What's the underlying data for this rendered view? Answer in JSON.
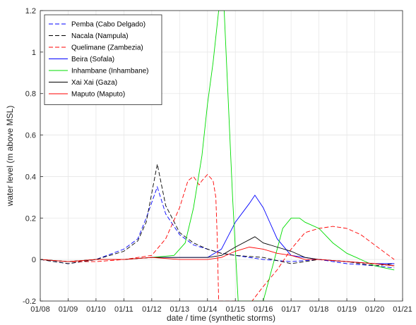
{
  "chart_data": {
    "type": "line",
    "xlabel": "date / time (synthetic storms)",
    "ylabel": "water level (m above MSL)",
    "x_ticks": [
      "01/08",
      "01/09",
      "01/10",
      "01/11",
      "01/12",
      "01/13",
      "01/14",
      "01/15",
      "01/16",
      "01/17",
      "01/18",
      "01/19",
      "01/20",
      "01/21"
    ],
    "y_ticks": [
      "-0.2",
      "0",
      "0.2",
      "0.4",
      "0.6",
      "0.8",
      "1",
      "1.2"
    ],
    "xlim": [
      "01/08",
      "01/21"
    ],
    "ylim": [
      -0.2,
      1.2
    ],
    "grid": true,
    "legend_position": "top-left",
    "series": [
      {
        "name": "Pemba (Cabo Delgado)",
        "color": "#0000ff",
        "dash": "dashed",
        "x": [
          "01/08 00:00",
          "01/09 00:00",
          "01/10 00:00",
          "01/11 00:00",
          "01/11 12:00",
          "01/11 19:12",
          "01/12 04:48",
          "01/12 12:00",
          "01/13 00:00",
          "01/13 12:00",
          "01/14 00:00",
          "01/14 12:00",
          "01/15 00:00",
          "01/16 00:00",
          "01/17 00:00",
          "01/18 00:00",
          "01/19 00:00",
          "01/20 00:00",
          "01/20 16:48"
        ],
        "y": [
          0.0,
          -0.02,
          0.0,
          0.05,
          0.1,
          0.2,
          0.35,
          0.22,
          0.12,
          0.07,
          0.05,
          0.03,
          0.02,
          0.0,
          -0.01,
          0.0,
          -0.02,
          -0.03,
          -0.04
        ]
      },
      {
        "name": "Nacala (Nampula)",
        "color": "#000000",
        "dash": "dashed",
        "x": [
          "01/08 00:00",
          "01/09 00:00",
          "01/10 00:00",
          "01/11 00:00",
          "01/11 12:00",
          "01/11 19:12",
          "01/12 04:48",
          "01/12 12:00",
          "01/13 00:00",
          "01/13 12:00",
          "01/14 00:00",
          "01/14 12:00",
          "01/15 00:00",
          "01/16 00:00",
          "01/17 00:00",
          "01/18 00:00",
          "01/19 00:00",
          "01/20 00:00",
          "01/20 16:48"
        ],
        "y": [
          0.0,
          -0.02,
          0.0,
          0.04,
          0.09,
          0.18,
          0.46,
          0.26,
          0.13,
          0.08,
          0.05,
          0.03,
          0.02,
          0.01,
          -0.02,
          0.0,
          -0.01,
          -0.03,
          -0.02
        ]
      },
      {
        "name": "Quelimane (Zambezia)",
        "color": "#ff0000",
        "dash": "dashed",
        "x": [
          "01/08 00:00",
          "01/09 00:00",
          "01/10 00:00",
          "01/11 00:00",
          "01/12 00:00",
          "01/12 12:00",
          "01/13 00:00",
          "01/13 07:12",
          "01/13 12:00",
          "01/13 16:48",
          "01/13 19:12",
          "01/14 00:00",
          "01/14 04:48",
          "01/14 07:12",
          "01/14 08:24",
          "01/14 09:36",
          "01/15 00:00",
          "01/15 07:12",
          "01/15 14:24",
          "01/16 00:00",
          "01/16 12:00",
          "01/17 00:00",
          "01/17 12:00",
          "01/18 00:00",
          "01/18 12:00",
          "01/19 00:00",
          "01/19 12:00",
          "01/20 00:00",
          "01/20 16:48"
        ],
        "y": [
          0.0,
          -0.01,
          -0.01,
          0.0,
          0.02,
          0.1,
          0.25,
          0.38,
          0.4,
          0.36,
          0.38,
          0.41,
          0.38,
          0.3,
          0.1,
          -0.2,
          -0.2,
          -0.2,
          -0.2,
          -0.13,
          -0.05,
          0.05,
          0.13,
          0.15,
          0.16,
          0.15,
          0.12,
          0.07,
          0.0
        ]
      },
      {
        "name": "Beira (Sofala)",
        "color": "#0000ff",
        "dash": "solid",
        "x": [
          "01/08 00:00",
          "01/09 00:00",
          "01/10 00:00",
          "01/11 00:00",
          "01/12 00:00",
          "01/13 00:00",
          "01/14 00:00",
          "01/14 12:00",
          "01/15 00:00",
          "01/15 12:00",
          "01/15 16:48",
          "01/16 00:00",
          "01/16 12:00",
          "01/17 00:00",
          "01/18 00:00",
          "01/19 00:00",
          "01/20 00:00",
          "01/20 16:48"
        ],
        "y": [
          0.0,
          -0.01,
          0.0,
          0.0,
          0.01,
          0.01,
          0.01,
          0.05,
          0.18,
          0.27,
          0.31,
          0.25,
          0.1,
          0.02,
          0.0,
          -0.01,
          -0.02,
          -0.02
        ]
      },
      {
        "name": "Inhambane (Inhambane)",
        "color": "#00dd00",
        "dash": "solid",
        "x": [
          "01/08 00:00",
          "01/09 00:00",
          "01/10 00:00",
          "01/11 00:00",
          "01/12 00:00",
          "01/12 19:12",
          "01/13 04:48",
          "01/13 12:00",
          "01/13 19:12",
          "01/14 00:00",
          "01/14 04:48",
          "01/14 09:36",
          "01/14 12:00",
          "01/14 14:24",
          "01/14 16:48",
          "01/14 21:36",
          "01/15 02:24",
          "01/15 04:48",
          "01/15 12:00",
          "01/16 00:00",
          "01/16 09:36",
          "01/16 16:48",
          "01/17 00:00",
          "01/17 07:12",
          "01/17 12:00",
          "01/18 00:00",
          "01/18 12:00",
          "01/19 00:00",
          "01/19 12:00",
          "01/20 00:00",
          "01/20 16:48"
        ],
        "y": [
          0.0,
          -0.01,
          0.0,
          0.0,
          0.01,
          0.02,
          0.08,
          0.25,
          0.5,
          0.75,
          0.95,
          1.2,
          1.2,
          1.2,
          0.9,
          0.3,
          -0.2,
          -0.2,
          -0.2,
          -0.2,
          0.0,
          0.15,
          0.2,
          0.2,
          0.18,
          0.15,
          0.08,
          0.03,
          0.0,
          -0.03,
          -0.05
        ]
      },
      {
        "name": "Xai Xai (Gaza)",
        "color": "#000000",
        "dash": "solid",
        "x": [
          "01/08 00:00",
          "01/09 00:00",
          "01/10 00:00",
          "01/11 00:00",
          "01/12 00:00",
          "01/13 00:00",
          "01/14 00:00",
          "01/14 12:00",
          "01/15 00:00",
          "01/15 16:48",
          "01/16 00:00",
          "01/16 12:00",
          "01/17 00:00",
          "01/17 12:00",
          "01/18 00:00",
          "01/19 00:00",
          "01/20 00:00",
          "01/20 16:48"
        ],
        "y": [
          0.0,
          -0.01,
          0.0,
          0.0,
          0.01,
          0.01,
          0.01,
          0.02,
          0.06,
          0.11,
          0.08,
          0.06,
          0.04,
          0.01,
          0.0,
          -0.01,
          -0.02,
          -0.03
        ]
      },
      {
        "name": "Maputo (Maputo)",
        "color": "#ff0000",
        "dash": "solid",
        "x": [
          "01/08 00:00",
          "01/09 00:00",
          "01/10 00:00",
          "01/11 00:00",
          "01/12 00:00",
          "01/13 00:00",
          "01/14 00:00",
          "01/14 12:00",
          "01/15 00:00",
          "01/15 12:00",
          "01/16 00:00",
          "01/16 12:00",
          "01/17 00:00",
          "01/17 12:00",
          "01/18 00:00",
          "01/19 00:00",
          "01/20 00:00",
          "01/20 16:48"
        ],
        "y": [
          0.0,
          -0.01,
          0.0,
          0.0,
          0.01,
          0.0,
          0.0,
          0.01,
          0.04,
          0.06,
          0.05,
          0.03,
          0.02,
          0.0,
          0.0,
          -0.01,
          -0.02,
          -0.03
        ]
      }
    ]
  }
}
